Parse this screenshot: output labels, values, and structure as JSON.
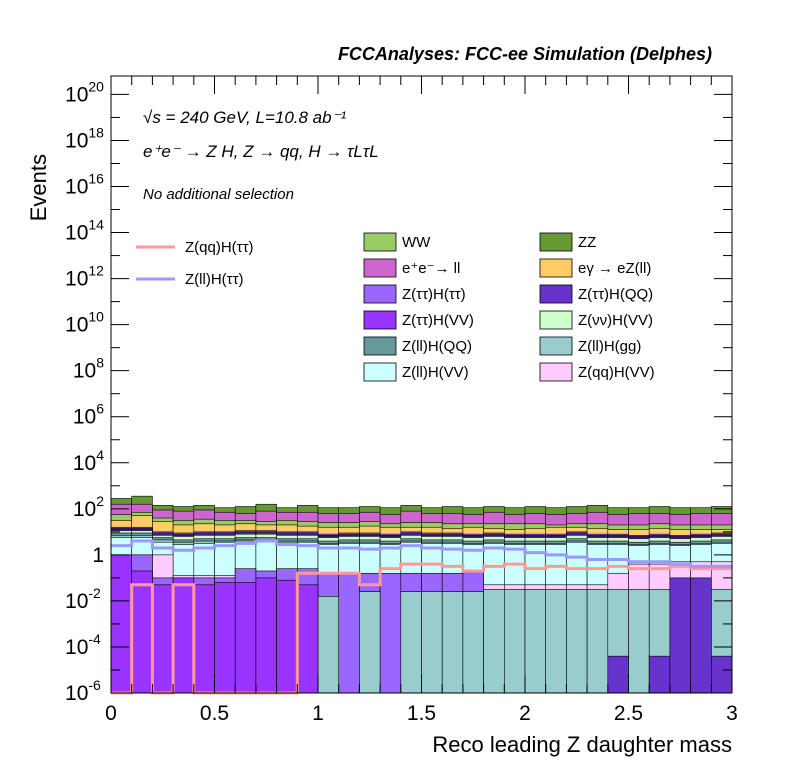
{
  "chart_data": {
    "type": "histogram-stacked-log",
    "title": "FCCAnalyses: FCC-ee Simulation (Delphes)",
    "annotations": {
      "energy": "√s = 240 GeV, L=10.8 ab⁻¹",
      "process": "e⁺e⁻ → Z H, Z → qq, H → τLτL",
      "selection": "No additional selection"
    },
    "xlabel": "Reco leading Z daughter mass",
    "ylabel": "Events",
    "xlim": [
      0,
      3
    ],
    "ylim_log10": [
      -6,
      20.8
    ],
    "x_ticks": [
      "0",
      "0.5",
      "1",
      "1.5",
      "2",
      "2.5",
      "3"
    ],
    "y_ticks": [
      {
        "base": "10",
        "exp": "20",
        "log": 20
      },
      {
        "base": "10",
        "exp": "18",
        "log": 18
      },
      {
        "base": "10",
        "exp": "16",
        "log": 16
      },
      {
        "base": "10",
        "exp": "14",
        "log": 14
      },
      {
        "base": "10",
        "exp": "12",
        "log": 12
      },
      {
        "base": "10",
        "exp": "10",
        "log": 10
      },
      {
        "base": "10",
        "exp": "8",
        "log": 8
      },
      {
        "base": "10",
        "exp": "6",
        "log": 6
      },
      {
        "base": "10",
        "exp": "4",
        "log": 4
      },
      {
        "base": "10",
        "exp": "2",
        "log": 2
      },
      {
        "base": "1",
        "exp": "",
        "log": 0
      },
      {
        "base": "10",
        "exp": "-2",
        "log": -2
      },
      {
        "base": "10",
        "exp": "-4",
        "log": -4
      },
      {
        "base": "10",
        "exp": "-6",
        "log": -6
      }
    ],
    "bin_edges": [
      0,
      0.1,
      0.2,
      0.3,
      0.4,
      0.5,
      0.6,
      0.7,
      0.8,
      0.9,
      1.0,
      1.1,
      1.2,
      1.3,
      1.4,
      1.5,
      1.6,
      1.7,
      1.8,
      1.9,
      2.0,
      2.1,
      2.2,
      2.3,
      2.4,
      2.5,
      2.6,
      2.7,
      2.8,
      2.9,
      3.0
    ],
    "stack_totals_log10": [
      {
        "name": "Z(qq)H(VV)",
        "color": "#ffccff",
        "values": [
          0.0,
          0.0,
          0.0,
          -0.9,
          -0.9,
          -0.9,
          -0.9,
          -0.9,
          -0.9,
          -0.9,
          -0.9,
          -0.9,
          -0.9,
          -0.9,
          -1.1,
          -1.1,
          -1.1,
          -1.1,
          -1.3,
          -1.3,
          -1.3,
          -1.3,
          -1.3,
          -1.3,
          -0.8,
          -0.4,
          -0.4,
          -0.3,
          -0.3,
          -0.3
        ]
      },
      {
        "name": "Z(ll)H(VV)",
        "color": "#ccffff",
        "values": [
          0.75,
          0.75,
          0.55,
          0.45,
          0.5,
          0.55,
          0.6,
          0.6,
          0.55,
          0.55,
          0.45,
          0.5,
          0.5,
          0.45,
          0.55,
          0.5,
          0.5,
          0.45,
          0.5,
          0.45,
          0.45,
          0.45,
          0.55,
          0.45,
          0.45,
          0.4,
          0.45,
          0.4,
          0.45,
          0.5
        ]
      },
      {
        "name": "Z(ll)H(gg)",
        "color": "#99cccc",
        "values": [
          0.85,
          0.85,
          0.65,
          0.55,
          0.6,
          0.6,
          0.65,
          0.65,
          0.6,
          0.6,
          0.5,
          0.55,
          0.55,
          0.5,
          0.6,
          0.55,
          0.55,
          0.5,
          0.55,
          0.5,
          0.5,
          0.5,
          0.6,
          0.5,
          0.5,
          0.45,
          0.5,
          0.45,
          0.5,
          0.55
        ]
      },
      {
        "name": "Z(ll)H(QQ)",
        "color": "#669999",
        "values": [
          0.95,
          0.95,
          0.75,
          0.65,
          0.7,
          0.7,
          0.75,
          0.75,
          0.7,
          0.7,
          0.6,
          0.65,
          0.65,
          0.6,
          0.7,
          0.65,
          0.65,
          0.6,
          0.65,
          0.6,
          0.6,
          0.6,
          0.7,
          0.6,
          0.6,
          0.55,
          0.6,
          0.55,
          0.6,
          0.65
        ]
      },
      {
        "name": "Z(νν)H(VV)",
        "color": "#ccffcc",
        "values": [
          1.05,
          1.05,
          0.85,
          0.8,
          0.85,
          0.85,
          0.9,
          0.9,
          0.85,
          0.85,
          0.75,
          0.8,
          0.8,
          0.75,
          0.85,
          0.8,
          0.8,
          0.75,
          0.8,
          0.75,
          0.75,
          0.75,
          0.85,
          0.75,
          0.75,
          0.7,
          0.75,
          0.7,
          0.75,
          0.8
        ]
      },
      {
        "name": "Z(ττ)H(VV)",
        "color": "#9933ff",
        "values": [
          1.1,
          1.1,
          0.9,
          0.85,
          0.9,
          0.9,
          0.95,
          0.95,
          0.9,
          0.9,
          0.8,
          0.85,
          0.85,
          0.8,
          0.9,
          0.85,
          0.85,
          0.8,
          0.85,
          0.8,
          0.8,
          0.8,
          0.9,
          0.8,
          0.8,
          0.75,
          0.8,
          0.75,
          0.8,
          0.85
        ]
      },
      {
        "name": "Z(ττ)H(QQ)",
        "color": "#6633cc",
        "values": [
          1.15,
          1.15,
          0.95,
          0.9,
          0.95,
          0.95,
          1.0,
          1.0,
          0.95,
          0.95,
          0.85,
          0.9,
          0.9,
          0.85,
          0.95,
          0.9,
          0.9,
          0.85,
          0.9,
          0.85,
          0.85,
          0.85,
          0.95,
          0.85,
          0.85,
          0.8,
          0.85,
          0.8,
          0.85,
          0.9
        ]
      },
      {
        "name": "Z(ττ)H(ττ)",
        "color": "#9966ff",
        "values": [
          1.2,
          1.2,
          1.0,
          0.95,
          1.0,
          1.0,
          1.05,
          1.05,
          1.0,
          1.0,
          0.9,
          0.95,
          0.95,
          0.9,
          1.0,
          0.95,
          0.95,
          0.9,
          0.95,
          0.9,
          0.9,
          0.9,
          1.0,
          0.9,
          0.9,
          0.85,
          0.9,
          0.85,
          0.9,
          0.95
        ]
      },
      {
        "name": "eγ → eZ(ll)",
        "color": "#ffcc66",
        "values": [
          1.5,
          1.7,
          1.45,
          1.3,
          1.35,
          1.3,
          1.35,
          1.3,
          1.3,
          1.25,
          1.2,
          1.2,
          1.25,
          1.2,
          1.2,
          1.2,
          1.15,
          1.2,
          1.15,
          1.1,
          1.15,
          1.2,
          1.2,
          1.15,
          1.1,
          1.1,
          1.15,
          1.1,
          1.1,
          1.1
        ]
      },
      {
        "name": "WW",
        "color": "#99cc66",
        "values": [
          1.75,
          1.85,
          1.6,
          1.5,
          1.55,
          1.5,
          1.5,
          1.45,
          1.5,
          1.45,
          1.4,
          1.4,
          1.45,
          1.35,
          1.4,
          1.4,
          1.35,
          1.35,
          1.35,
          1.35,
          1.35,
          1.3,
          1.35,
          1.35,
          1.3,
          1.3,
          1.35,
          1.3,
          1.3,
          1.3
        ]
      },
      {
        "name": "e⁺e⁻→ ll",
        "color": "#cc66cc",
        "values": [
          2.2,
          2.2,
          1.95,
          1.9,
          1.95,
          1.85,
          1.8,
          1.9,
          1.85,
          1.85,
          1.8,
          1.8,
          1.85,
          1.75,
          1.9,
          1.8,
          1.8,
          1.75,
          1.85,
          1.75,
          1.8,
          1.75,
          1.8,
          1.85,
          1.75,
          1.8,
          1.8,
          1.75,
          1.8,
          1.8
        ]
      },
      {
        "name": "ZZ",
        "color": "#669933",
        "values": [
          2.45,
          2.55,
          2.15,
          2.1,
          2.15,
          2.05,
          2.1,
          2.2,
          2.05,
          2.15,
          2.05,
          2.05,
          2.1,
          2.05,
          2.15,
          2.05,
          2.1,
          2.05,
          2.1,
          2.05,
          2.1,
          2.05,
          2.1,
          2.15,
          2.05,
          2.05,
          2.1,
          2.05,
          2.05,
          2.1
        ]
      }
    ],
    "foreground_bars_log10": [
      {
        "name": "Z(ττ)H(ττ)",
        "color": "#9966ff",
        "values": [
          0.0,
          0.0,
          -1.0,
          -1.0,
          -1.0,
          -1.0,
          -0.6,
          -0.7,
          -0.6,
          -0.6,
          -0.8,
          -0.8,
          -0.8,
          -0.8,
          -0.8,
          -0.8,
          -0.8,
          -0.7,
          -6,
          -6,
          -6,
          -6,
          -6,
          -6,
          -6,
          -6,
          -6,
          -6,
          -6,
          -6
        ]
      },
      {
        "name": "Z(ll)H(gg)",
        "color": "#99cccc",
        "values": [
          -6,
          -6,
          -6,
          -6,
          -6,
          -6,
          -6,
          -6,
          -6,
          -6,
          -1.8,
          -6,
          -1.6,
          -6,
          -1.6,
          -1.6,
          -1.6,
          -1.6,
          -1.5,
          -1.5,
          -1.5,
          -1.5,
          -1.5,
          -1.5,
          -1.5,
          -1.5,
          -1.5,
          -1.5,
          -1.5,
          -1.5
        ]
      },
      {
        "name": "Z(ττ)H(VV)",
        "color": "#9933ff",
        "values": [
          0.0,
          -0.7,
          -1.3,
          -1.0,
          -1.3,
          -1.2,
          -1.2,
          -1.0,
          -1.1,
          -1.3,
          -6,
          -6,
          -6,
          -6,
          -6,
          -6,
          -6,
          -6,
          -6,
          -6,
          -6,
          -6,
          -6,
          -6,
          -6,
          -6,
          -6,
          -6,
          -6,
          -6
        ]
      },
      {
        "name": "Z(ττ)H(QQ)",
        "color": "#6633cc",
        "values": [
          -6,
          -6,
          -6,
          -6,
          -6,
          -6,
          -6,
          -6,
          -6,
          -6,
          -6,
          -6,
          -6,
          -6,
          -6,
          -6,
          -6,
          -6,
          -6,
          -6,
          -6,
          -6,
          -6,
          -6,
          -4.4,
          -6,
          -4.4,
          -1.0,
          -1.0,
          -4.4
        ]
      }
    ],
    "line_series": [
      {
        "name": "Z(qq)H(ττ)",
        "color": "#ff9999",
        "values": [
          -6,
          -1.3,
          -6,
          -1.3,
          -6,
          -6,
          -6,
          -6,
          -6,
          -0.8,
          -0.8,
          -0.8,
          -1.3,
          -0.6,
          -0.4,
          -0.4,
          -0.5,
          -0.7,
          -0.5,
          -0.4,
          -0.6,
          -0.5,
          -0.6,
          -0.6,
          -0.5,
          -0.6,
          -0.6,
          -0.5,
          -0.6,
          -0.6
        ]
      },
      {
        "name": "Z(ll)H(ττ)",
        "color": "#9999ff",
        "values": [
          0.4,
          0.6,
          0.3,
          0.2,
          0.3,
          0.4,
          0.5,
          0.6,
          0.45,
          0.4,
          0.3,
          0.3,
          0.25,
          0.3,
          0.4,
          0.3,
          0.25,
          0.2,
          0.3,
          0.25,
          0.1,
          0.0,
          -0.1,
          -0.2,
          -0.2,
          -0.3,
          -0.3,
          -0.4,
          -0.5,
          -0.5
        ]
      }
    ],
    "legend_lines": [
      {
        "name": "Z(qq)H(ττ)",
        "color": "#ff9999"
      },
      {
        "name": "Z(ll)H(ττ)",
        "color": "#9999ff"
      }
    ],
    "legend_boxes": [
      {
        "name": "WW",
        "color": "#99cc66"
      },
      {
        "name": "ZZ",
        "color": "#669933"
      },
      {
        "name": "e⁺e⁻→ ll",
        "color": "#cc66cc"
      },
      {
        "name": "eγ → eZ(ll)",
        "color": "#ffcc66"
      },
      {
        "name": "Z(ττ)H(ττ)",
        "color": "#9966ff"
      },
      {
        "name": "Z(ττ)H(QQ)",
        "color": "#6633cc"
      },
      {
        "name": "Z(ττ)H(VV)",
        "color": "#9933ff"
      },
      {
        "name": "Z(νν)H(VV)",
        "color": "#ccffcc"
      },
      {
        "name": "Z(ll)H(QQ)",
        "color": "#669999"
      },
      {
        "name": "Z(ll)H(gg)",
        "color": "#99cccc"
      },
      {
        "name": "Z(ll)H(VV)",
        "color": "#ccffff"
      },
      {
        "name": "Z(qq)H(VV)",
        "color": "#ffccff"
      }
    ],
    "legend_placement": "upper-right",
    "grid": false
  }
}
